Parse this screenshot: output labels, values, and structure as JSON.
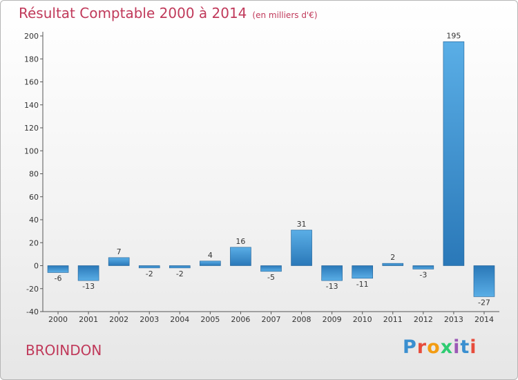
{
  "header": {
    "title": "Résultat Comptable 2000 à 2014",
    "subtitle": "(en milliers d'€)"
  },
  "footer": {
    "location": "BROINDON",
    "logo_text": "Proxiti",
    "logo_colors": [
      "#3a8fd0",
      "#e74c3c",
      "#f39c12",
      "#2ecc71",
      "#9b59b6",
      "#3a8fd0",
      "#e74c3c"
    ]
  },
  "colors": {
    "bar_light": "#5aaee6",
    "bar_dark": "#2a78b8",
    "accent": "#c0395a"
  },
  "chart_data": {
    "type": "bar",
    "title": "Résultat Comptable 2000 à 2014",
    "subtitle": "(en milliers d'€)",
    "categories": [
      "2000",
      "2001",
      "2002",
      "2003",
      "2004",
      "2005",
      "2006",
      "2007",
      "2008",
      "2009",
      "2010",
      "2011",
      "2012",
      "2013",
      "2014"
    ],
    "values": [
      -6,
      -13,
      7,
      -2,
      -2,
      4,
      16,
      -5,
      31,
      -13,
      -11,
      2,
      -3,
      195,
      -27
    ],
    "value_labels": [
      "-6",
      "-13",
      "7",
      "-2",
      "-2",
      "4",
      "16",
      "-5",
      "31",
      "-13",
      "-11",
      "2",
      "-3",
      "195",
      "-27"
    ],
    "yticks": [
      200,
      180,
      160,
      140,
      120,
      100,
      80,
      60,
      40,
      20,
      0,
      -20,
      -40
    ],
    "ylim": [
      -40,
      200
    ],
    "xlabel": "",
    "ylabel": "",
    "grid": false,
    "legend": "none"
  }
}
